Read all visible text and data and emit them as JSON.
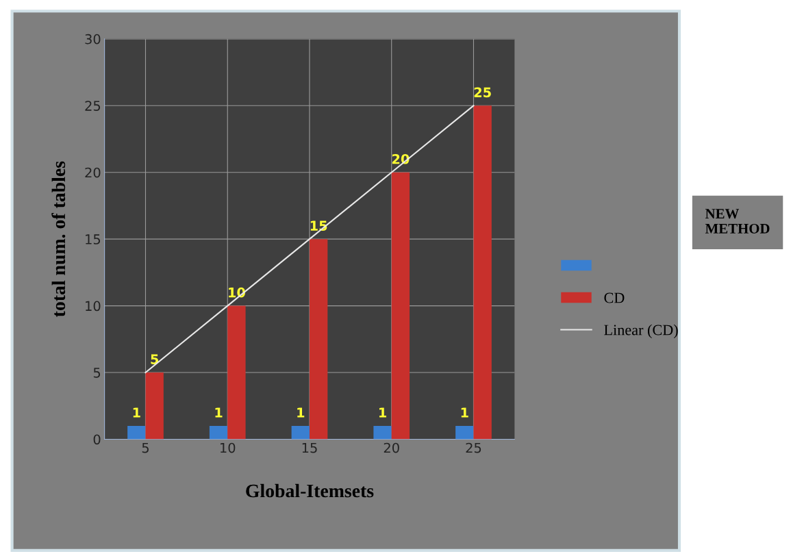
{
  "chart_data": {
    "type": "bar",
    "xlabel": "Global-Itemsets",
    "ylabel": "total num. of tables",
    "categories": [
      "5",
      "10",
      "15",
      "20",
      "25"
    ],
    "series": [
      {
        "color": "#3a7fd0",
        "values": [
          1,
          1,
          1,
          1,
          1
        ],
        "value_labels": [
          "1",
          "1",
          "1",
          "1",
          "1"
        ]
      },
      {
        "name": "CD",
        "color": "#c8302c",
        "values": [
          5,
          10,
          15,
          20,
          25
        ],
        "value_labels": [
          "5",
          "10",
          "15",
          "20",
          "25"
        ]
      },
      {
        "name": "Linear (CD)",
        "type": "line",
        "color": "#e8e8e8",
        "x": [
          "5",
          "10",
          "15",
          "20",
          "25"
        ],
        "values": [
          5,
          10,
          15,
          20,
          25
        ]
      }
    ],
    "ylim": [
      0,
      30
    ],
    "yticks": [
      0,
      5,
      10,
      15,
      20,
      25,
      30
    ],
    "grid": true,
    "legend": "right",
    "annotations": [
      "NEW METHOD"
    ]
  }
}
